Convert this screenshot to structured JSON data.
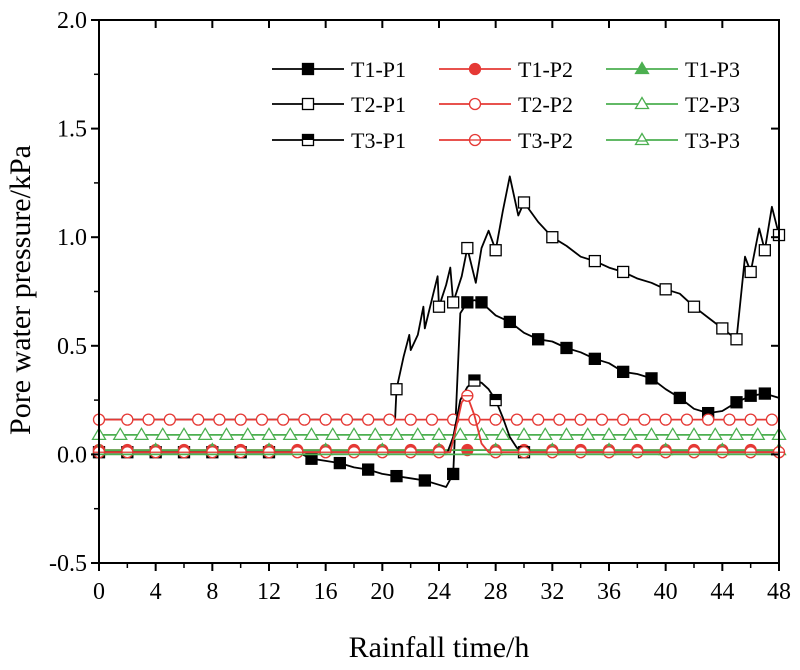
{
  "chart_data": {
    "type": "line",
    "title": "",
    "xlabel": "Rainfall time/h",
    "ylabel": "Pore water pressure/kPa",
    "xlim": [
      0,
      48
    ],
    "ylim": [
      -0.5,
      2.0
    ],
    "xticks": [
      "0",
      "4",
      "8",
      "12",
      "16",
      "20",
      "24",
      "28",
      "32",
      "36",
      "40",
      "44",
      "48"
    ],
    "yticks": [
      "-0.5",
      "0.0",
      "0.5",
      "1.0",
      "1.5",
      "2.0"
    ],
    "grid": false,
    "legend_position": "top-right",
    "series": [
      {
        "name": "T1-P1",
        "color": "#000000",
        "marker": "square-filled",
        "x": [
          0,
          2,
          4,
          6,
          8,
          10,
          12,
          14,
          15,
          16,
          17,
          18,
          19,
          20,
          21,
          22,
          23,
          24,
          24.5,
          25,
          25.5,
          26,
          26.5,
          27,
          28,
          29,
          30,
          31,
          32,
          33,
          34,
          35,
          36,
          37,
          38,
          39,
          40,
          41,
          42,
          43,
          44,
          45,
          46,
          47,
          48
        ],
        "y": [
          0.01,
          0.01,
          0.01,
          0.01,
          0.01,
          0.01,
          0.01,
          0.01,
          -0.02,
          -0.03,
          -0.04,
          -0.06,
          -0.07,
          -0.09,
          -0.1,
          -0.11,
          -0.12,
          -0.14,
          -0.15,
          -0.09,
          0.65,
          0.7,
          0.71,
          0.7,
          0.64,
          0.61,
          0.56,
          0.53,
          0.52,
          0.49,
          0.47,
          0.44,
          0.42,
          0.38,
          0.37,
          0.35,
          0.3,
          0.26,
          0.21,
          0.19,
          0.2,
          0.24,
          0.27,
          0.28,
          0.26
        ],
        "markers_at": [
          0,
          2,
          4,
          6,
          8,
          10,
          12,
          15,
          17,
          19,
          21,
          23,
          25,
          26,
          27,
          29,
          31,
          33,
          35,
          37,
          39,
          41,
          43,
          45,
          46,
          47
        ]
      },
      {
        "name": "T1-P2",
        "color": "#e53935",
        "marker": "circle-filled",
        "x": [
          0,
          48
        ],
        "y": [
          0.02,
          0.02
        ],
        "markers_at": [
          0,
          2,
          4,
          6,
          8,
          10,
          12,
          14,
          16,
          18,
          20,
          22,
          24,
          26,
          28,
          30,
          32,
          34,
          36,
          38,
          40,
          42,
          44,
          46
        ]
      },
      {
        "name": "T1-P3",
        "color": "#4caf50",
        "marker": "triangle-filled",
        "x": [
          0,
          48
        ],
        "y": [
          0.02,
          0.02
        ],
        "markers_at": [
          0,
          4,
          8,
          12,
          16,
          20,
          24,
          28,
          32,
          36,
          40,
          44,
          48
        ]
      },
      {
        "name": "T2-P1",
        "color": "#000000",
        "marker": "square-open",
        "x": [
          0,
          20.9,
          21.0,
          21.5,
          21.9,
          22.0,
          22.5,
          22.9,
          23.0,
          23.6,
          23.9,
          24.0,
          24.5,
          24.8,
          25.0,
          25.6,
          26.0,
          26.6,
          27.0,
          27.5,
          28.0,
          28.5,
          29.0,
          29.6,
          30.0,
          31,
          32,
          33,
          34,
          35,
          36,
          37,
          38,
          39,
          40,
          41,
          42,
          43,
          44,
          45,
          45.6,
          46,
          46.6,
          47,
          47.5,
          48
        ],
        "y": [
          0.16,
          0.16,
          0.3,
          0.45,
          0.55,
          0.48,
          0.55,
          0.68,
          0.58,
          0.74,
          0.82,
          0.68,
          0.78,
          0.86,
          0.7,
          0.82,
          0.95,
          0.79,
          0.95,
          1.03,
          0.94,
          1.12,
          1.28,
          1.1,
          1.16,
          1.07,
          1.0,
          0.96,
          0.91,
          0.89,
          0.86,
          0.84,
          0.81,
          0.79,
          0.76,
          0.74,
          0.68,
          0.63,
          0.58,
          0.53,
          0.91,
          0.84,
          1.04,
          0.94,
          1.14,
          1.01
        ],
        "markers_at": [
          21,
          24,
          25,
          26,
          28,
          30,
          32,
          35,
          37,
          40,
          42,
          44,
          45,
          46,
          47,
          48
        ]
      },
      {
        "name": "T2-P2",
        "color": "#e53935",
        "marker": "circle-open",
        "x": [
          0,
          48
        ],
        "y": [
          0.16,
          0.16
        ],
        "markers_at": [
          0,
          2,
          3.5,
          5,
          7,
          8.5,
          10,
          11.5,
          13,
          14.5,
          16,
          17.5,
          19,
          20.5,
          22,
          23.5,
          25,
          26.5,
          28,
          29.5,
          31,
          32.5,
          34,
          35.5,
          37,
          38.5,
          40,
          41.5,
          43,
          44.5,
          46,
          47.5
        ]
      },
      {
        "name": "T2-P3",
        "color": "#4caf50",
        "marker": "triangle-open",
        "x": [
          0,
          48
        ],
        "y": [
          0.09,
          0.09
        ],
        "markers_at": [
          0,
          1.5,
          3,
          4.5,
          6,
          7.5,
          9,
          10.5,
          12,
          13.5,
          15,
          16.5,
          18,
          19.5,
          21,
          22.5,
          24,
          25.5,
          27,
          28.5,
          30,
          31.5,
          33,
          34.5,
          36,
          37.5,
          39,
          40.5,
          42,
          43.5,
          45,
          46.5,
          48
        ]
      },
      {
        "name": "T3-P1",
        "color": "#000000",
        "marker": "square-half",
        "x": [
          0,
          24.6,
          25.0,
          25.5,
          26.0,
          26.5,
          27.0,
          27.5,
          28.0,
          28.5,
          29.0,
          29.5,
          30.0,
          30.5,
          48
        ],
        "y": [
          0.01,
          0.01,
          0.08,
          0.25,
          0.31,
          0.34,
          0.33,
          0.3,
          0.25,
          0.17,
          0.08,
          0.03,
          0.01,
          0.01,
          0.01
        ],
        "markers_at": [
          26.5,
          28,
          30
        ]
      },
      {
        "name": "T3-P2",
        "color": "#e53935",
        "marker": "circle-half",
        "x": [
          0,
          24.8,
          25.2,
          25.6,
          26.0,
          26.5,
          27.0,
          27.5,
          28.0,
          48
        ],
        "y": [
          0.01,
          0.01,
          0.12,
          0.24,
          0.27,
          0.18,
          0.05,
          0.01,
          0.01,
          0.01
        ],
        "markers_at": [
          0,
          2,
          4,
          6,
          8,
          10,
          12,
          14,
          16,
          18,
          20,
          22,
          24,
          26,
          28,
          30,
          32,
          34,
          36,
          38,
          40,
          42,
          44,
          46,
          48
        ]
      },
      {
        "name": "T3-P3",
        "color": "#4caf50",
        "marker": "triangle-half",
        "x": [
          0,
          48
        ],
        "y": [
          0.0,
          0.0
        ],
        "markers_at": []
      }
    ]
  }
}
